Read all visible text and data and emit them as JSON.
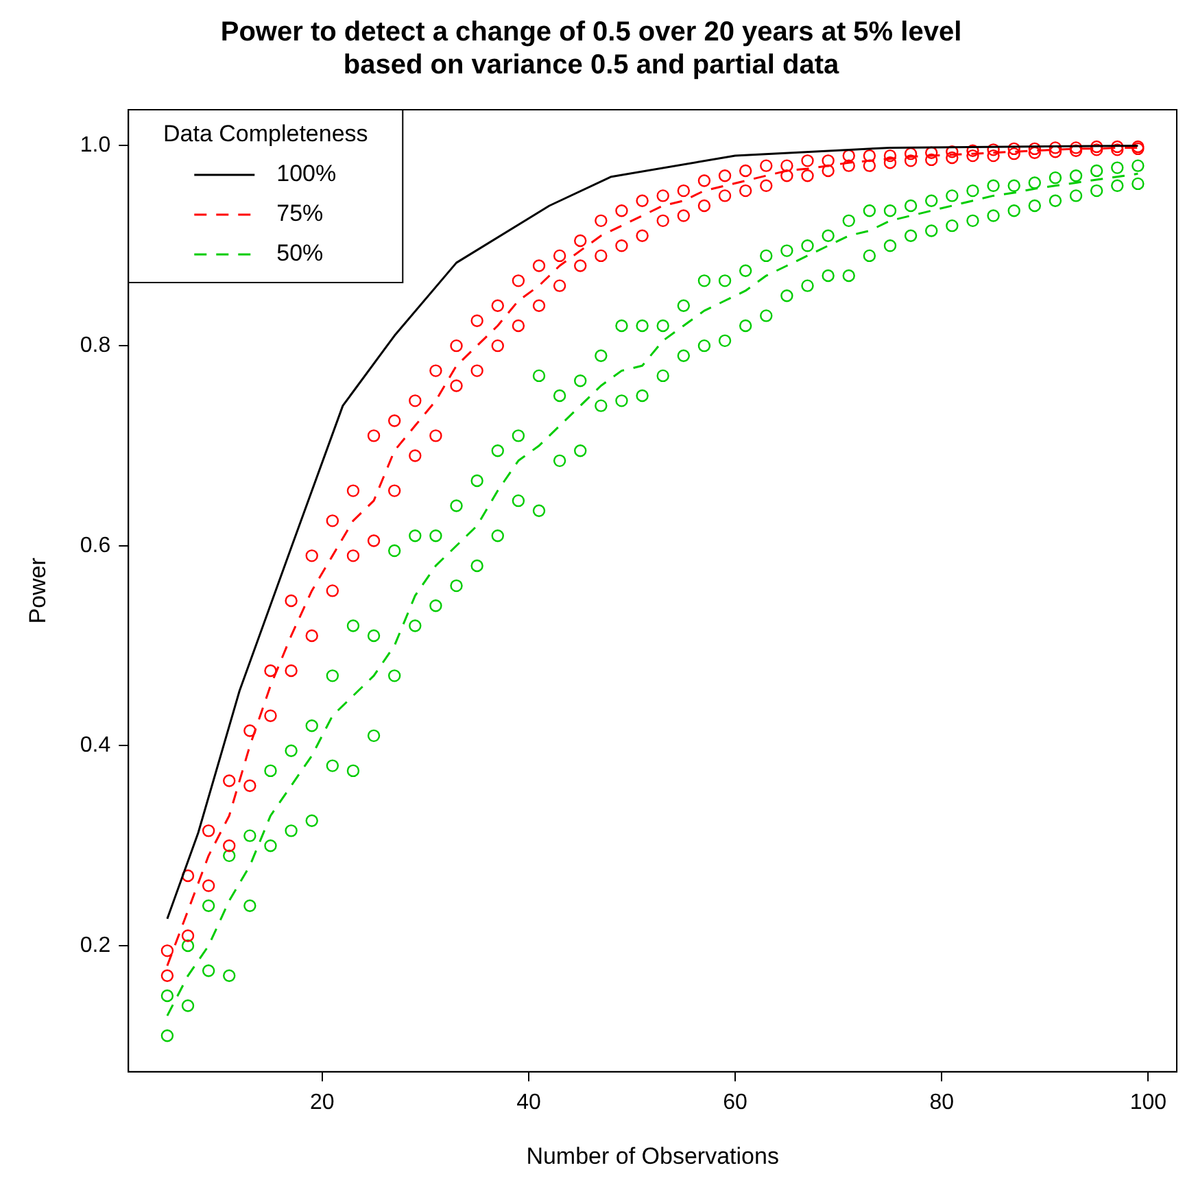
{
  "chart_data": {
    "type": "scatter",
    "title": "Power to detect a change of 0.5 over 20 years at 5% level\nbased on variance 0.5 and partial data",
    "xlabel": "Number of Observations",
    "ylabel": "Power",
    "legend_title": "Data Completeness",
    "legend": "top left",
    "grid": false,
    "marker": "circle",
    "xlim": [
      1.24,
      102.76
    ],
    "xticks": [
      20,
      40,
      60,
      80,
      100
    ],
    "ylim": [
      0.074,
      1.036
    ],
    "yticks": [
      0.2,
      0.4,
      0.6,
      0.8,
      {
        "value": 1,
        "label": "1.0"
      }
    ],
    "series": [
      {
        "type": "line",
        "name": "100%",
        "color": "#000000",
        "line_style": "solid",
        "marker": "none",
        "x": [
          5,
          8,
          12,
          17,
          22,
          27,
          33,
          42,
          48,
          60,
          75,
          99
        ],
        "values": [
          0.227,
          0.313,
          0.455,
          0.598,
          0.74,
          0.81,
          0.883,
          0.94,
          0.969,
          0.99,
          0.998,
          1.0
        ]
      },
      {
        "type": "line",
        "name": "75%",
        "color": "#ff0000",
        "line_style": "dashed",
        "marker": "none",
        "x": [
          5,
          7,
          9,
          11,
          13,
          15,
          17,
          19,
          21,
          23,
          25,
          27,
          29,
          31,
          33,
          35,
          37,
          39,
          41,
          43,
          45,
          47,
          49,
          51,
          53,
          55,
          57,
          59,
          61,
          63,
          65,
          67,
          69,
          71,
          73,
          75,
          77,
          79,
          81,
          83,
          85,
          87,
          89,
          91,
          93,
          95,
          97,
          99
        ],
        "values": [
          0.18,
          0.235,
          0.29,
          0.33,
          0.4,
          0.46,
          0.51,
          0.555,
          0.59,
          0.625,
          0.645,
          0.695,
          0.72,
          0.745,
          0.78,
          0.8,
          0.82,
          0.845,
          0.86,
          0.88,
          0.895,
          0.91,
          0.92,
          0.93,
          0.94,
          0.945,
          0.955,
          0.96,
          0.965,
          0.97,
          0.975,
          0.977,
          0.98,
          0.983,
          0.985,
          0.987,
          0.989,
          0.99,
          0.991,
          0.992,
          0.993,
          0.994,
          0.995,
          0.996,
          0.997,
          0.997,
          0.998,
          0.998
        ]
      },
      {
        "type": "line",
        "name": "50%",
        "color": "#00cc00",
        "line_style": "dashed",
        "marker": "none",
        "x": [
          5,
          7,
          9,
          11,
          13,
          15,
          17,
          19,
          21,
          23,
          25,
          27,
          29,
          31,
          33,
          35,
          37,
          39,
          41,
          43,
          45,
          47,
          49,
          51,
          53,
          55,
          57,
          59,
          61,
          63,
          65,
          67,
          69,
          71,
          73,
          75,
          77,
          79,
          81,
          83,
          85,
          87,
          89,
          91,
          93,
          95,
          97,
          99
        ],
        "values": [
          0.13,
          0.17,
          0.2,
          0.245,
          0.28,
          0.33,
          0.36,
          0.39,
          0.43,
          0.45,
          0.47,
          0.5,
          0.55,
          0.58,
          0.6,
          0.62,
          0.655,
          0.685,
          0.7,
          0.72,
          0.74,
          0.76,
          0.775,
          0.78,
          0.805,
          0.82,
          0.835,
          0.845,
          0.855,
          0.87,
          0.88,
          0.89,
          0.9,
          0.91,
          0.915,
          0.925,
          0.93,
          0.935,
          0.94,
          0.945,
          0.95,
          0.953,
          0.957,
          0.96,
          0.963,
          0.966,
          0.969,
          0.972
        ]
      },
      {
        "type": "scatter",
        "color": "#ff0000",
        "x": [
          5,
          5,
          7,
          7,
          9,
          9,
          11,
          11,
          13,
          13,
          15,
          15,
          17,
          17,
          19,
          19,
          21,
          21,
          23,
          23,
          25,
          25,
          27,
          27,
          29,
          29,
          31,
          31,
          33,
          33,
          35,
          35,
          37,
          37,
          39,
          39,
          41,
          41,
          43,
          43,
          45,
          45,
          47,
          47,
          49,
          49,
          51,
          51,
          53,
          53,
          55,
          55,
          57,
          57,
          59,
          59,
          61,
          61,
          63,
          63,
          65,
          65,
          67,
          67,
          69,
          69,
          71,
          71,
          73,
          73,
          75,
          75,
          77,
          77,
          79,
          79,
          81,
          81,
          83,
          83,
          85,
          85,
          87,
          87,
          89,
          89,
          91,
          91,
          93,
          93,
          95,
          95,
          97,
          97,
          99,
          99
        ],
        "values": [
          0.17,
          0.195,
          0.21,
          0.27,
          0.26,
          0.315,
          0.3,
          0.365,
          0.36,
          0.415,
          0.43,
          0.475,
          0.475,
          0.545,
          0.51,
          0.59,
          0.555,
          0.625,
          0.59,
          0.655,
          0.605,
          0.71,
          0.655,
          0.725,
          0.69,
          0.745,
          0.71,
          0.775,
          0.76,
          0.8,
          0.775,
          0.825,
          0.8,
          0.84,
          0.82,
          0.865,
          0.84,
          0.88,
          0.86,
          0.89,
          0.88,
          0.905,
          0.89,
          0.925,
          0.9,
          0.935,
          0.91,
          0.945,
          0.925,
          0.95,
          0.93,
          0.955,
          0.94,
          0.965,
          0.95,
          0.97,
          0.955,
          0.975,
          0.96,
          0.98,
          0.97,
          0.98,
          0.97,
          0.985,
          0.975,
          0.985,
          0.98,
          0.99,
          0.98,
          0.99,
          0.983,
          0.99,
          0.985,
          0.992,
          0.986,
          0.993,
          0.988,
          0.994,
          0.99,
          0.995,
          0.99,
          0.996,
          0.992,
          0.997,
          0.993,
          0.997,
          0.994,
          0.998,
          0.995,
          0.998,
          0.996,
          0.999,
          0.996,
          0.999,
          0.997,
          0.999
        ]
      },
      {
        "type": "scatter",
        "color": "#00cc00",
        "x": [
          5,
          5,
          7,
          7,
          9,
          9,
          11,
          11,
          13,
          13,
          15,
          15,
          17,
          17,
          19,
          19,
          21,
          21,
          23,
          23,
          25,
          25,
          27,
          27,
          29,
          29,
          31,
          31,
          33,
          33,
          35,
          35,
          37,
          37,
          39,
          39,
          41,
          41,
          43,
          43,
          45,
          45,
          47,
          47,
          49,
          49,
          51,
          51,
          53,
          53,
          55,
          55,
          57,
          57,
          59,
          59,
          61,
          61,
          63,
          63,
          65,
          65,
          67,
          67,
          69,
          69,
          71,
          71,
          73,
          73,
          75,
          75,
          77,
          77,
          79,
          79,
          81,
          81,
          83,
          83,
          85,
          85,
          87,
          87,
          89,
          89,
          91,
          91,
          93,
          93,
          95,
          95,
          97,
          97,
          99,
          99
        ],
        "values": [
          0.11,
          0.15,
          0.14,
          0.2,
          0.175,
          0.24,
          0.17,
          0.29,
          0.24,
          0.31,
          0.3,
          0.375,
          0.315,
          0.395,
          0.325,
          0.42,
          0.38,
          0.47,
          0.375,
          0.52,
          0.41,
          0.51,
          0.47,
          0.595,
          0.52,
          0.61,
          0.54,
          0.61,
          0.56,
          0.64,
          0.58,
          0.665,
          0.61,
          0.695,
          0.645,
          0.71,
          0.635,
          0.77,
          0.685,
          0.75,
          0.695,
          0.765,
          0.74,
          0.79,
          0.745,
          0.82,
          0.75,
          0.82,
          0.77,
          0.82,
          0.79,
          0.84,
          0.8,
          0.865,
          0.805,
          0.865,
          0.82,
          0.875,
          0.83,
          0.89,
          0.85,
          0.895,
          0.86,
          0.9,
          0.87,
          0.91,
          0.87,
          0.925,
          0.89,
          0.935,
          0.9,
          0.935,
          0.91,
          0.94,
          0.915,
          0.945,
          0.92,
          0.95,
          0.925,
          0.955,
          0.93,
          0.96,
          0.935,
          0.96,
          0.94,
          0.963,
          0.945,
          0.968,
          0.95,
          0.97,
          0.955,
          0.975,
          0.96,
          0.978,
          0.962,
          0.98
        ]
      }
    ]
  }
}
